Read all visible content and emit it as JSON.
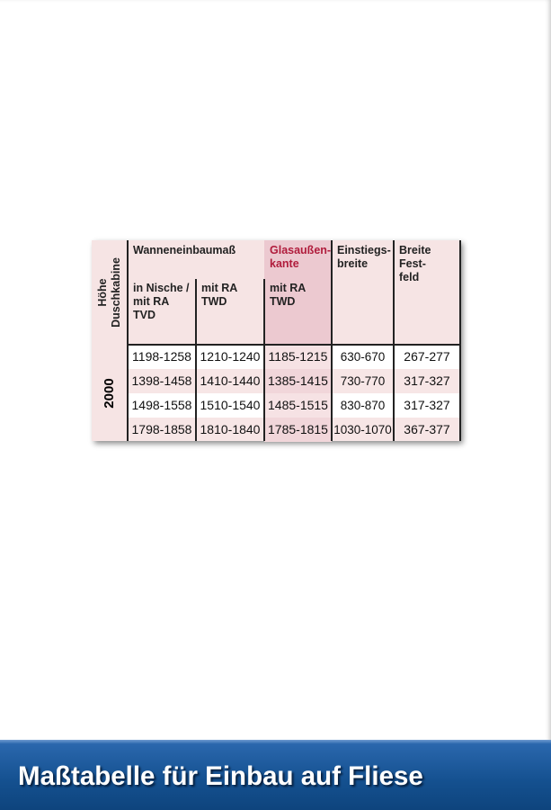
{
  "table": {
    "row_header": [
      "Höhe",
      "Duschkabine"
    ],
    "row_label": "2000",
    "headers": {
      "group": "Wanneneinbaumaß",
      "glass": [
        "Glasaußen-",
        "kante"
      ],
      "entry": [
        "Einstiegs-",
        "breite"
      ],
      "fixed": [
        "Breite Fest-",
        "feld"
      ],
      "sub": [
        [
          "in Nische /",
          "mit RA TVD"
        ],
        [
          "mit RA TWD"
        ],
        [
          "mit RA TWD"
        ]
      ]
    },
    "rows": [
      [
        "1198-1258",
        "1210-1240",
        "1185-1215",
        "630-670",
        "267-277"
      ],
      [
        "1398-1458",
        "1410-1440",
        "1385-1415",
        "730-770",
        "317-327"
      ],
      [
        "1498-1558",
        "1510-1540",
        "1485-1515",
        "830-870",
        "317-327"
      ],
      [
        "1798-1858",
        "1810-1840",
        "1785-1815",
        "1030-1070",
        "367-377"
      ]
    ]
  },
  "banner": {
    "title": "Maßtabelle für Einbau auf Fliese"
  }
}
